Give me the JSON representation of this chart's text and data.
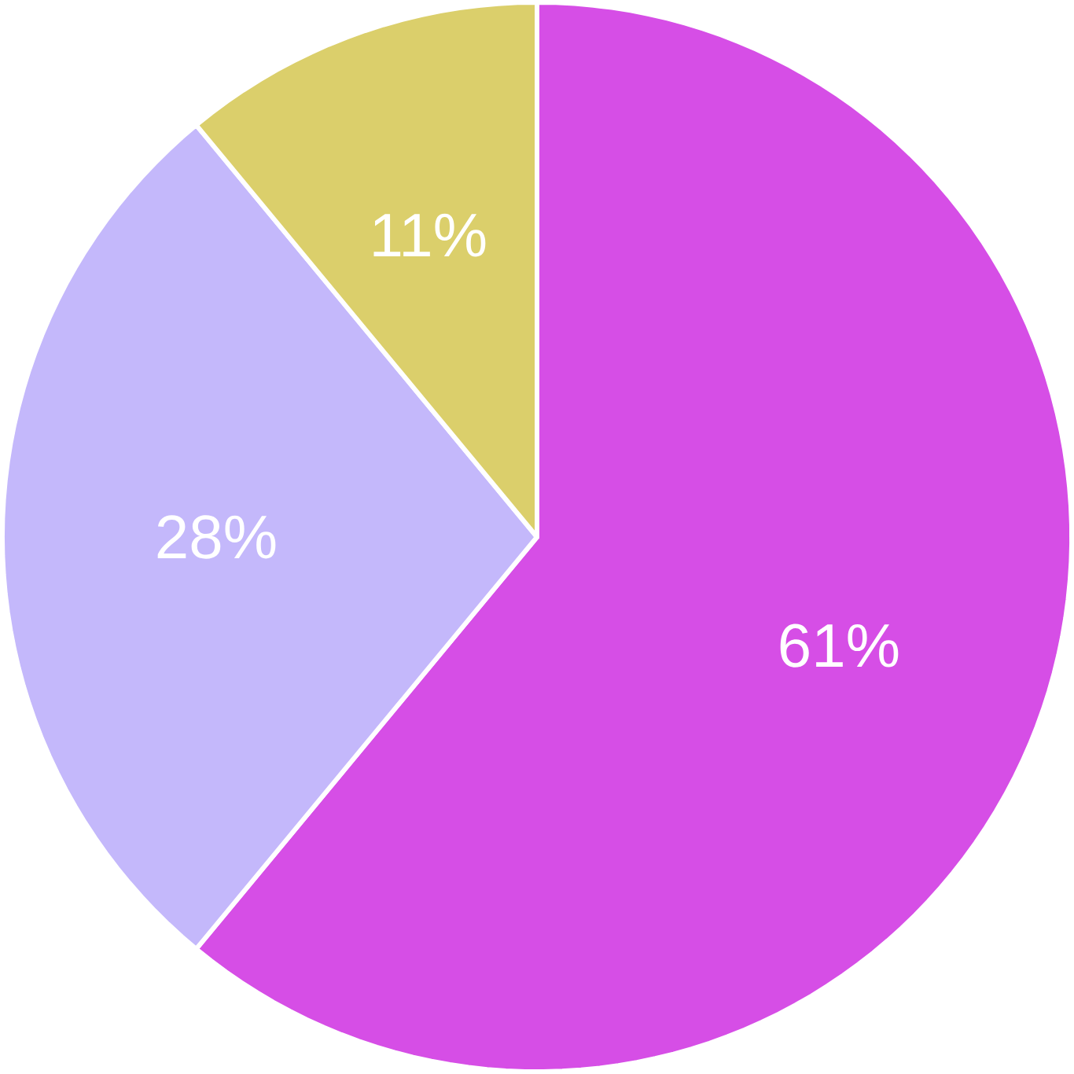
{
  "chart_data": {
    "type": "pie",
    "categories": [
      null,
      null,
      null
    ],
    "values": [
      61,
      28,
      11
    ],
    "colors": [
      "#d64ee6",
      "#c4b8fb",
      "#dbcf6b"
    ],
    "value_labels": [
      "61%",
      "28%",
      "11%"
    ]
  }
}
